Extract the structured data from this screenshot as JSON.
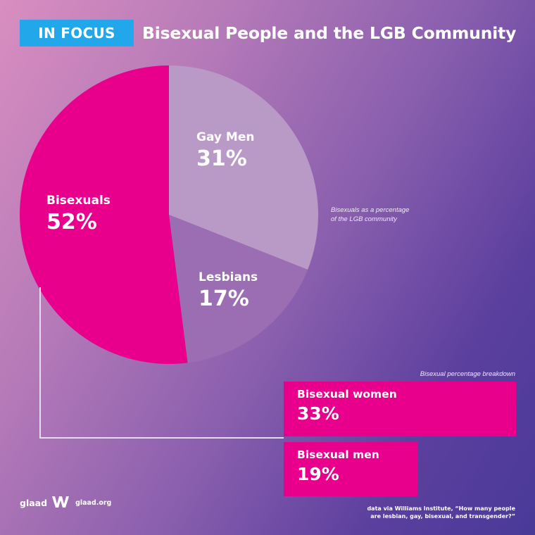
{
  "header": {
    "badge": "IN FOCUS",
    "title": "Bisexual People and the LGB Community"
  },
  "colors": {
    "accent_blue": "#22a7ea",
    "bisexual_pink": "#e8008c",
    "gay_men_lavender": "#b999c6",
    "lesbians_purple": "#9b6db2",
    "connector": "#e3dbee"
  },
  "captions": {
    "pie": "Bisexuals as a percentage of the LGB community",
    "pie_line1": "Bisexuals as a percentage",
    "pie_line2": "of the LGB community",
    "bars": "Bisexual percentage breakdown"
  },
  "chart_data": [
    {
      "type": "pie",
      "title": "",
      "slices": [
        {
          "label": "Gay Men",
          "value": 31,
          "display": "31%",
          "color": "#b999c6"
        },
        {
          "label": "Lesbians",
          "value": 17,
          "display": "17%",
          "color": "#9b6db2"
        },
        {
          "label": "Bisexuals",
          "value": 52,
          "display": "52%",
          "color": "#e8008c"
        }
      ]
    },
    {
      "type": "bar",
      "orientation": "horizontal",
      "title": "Bisexual percentage breakdown",
      "categories": [
        "Bisexual women",
        "Bisexual men"
      ],
      "values": [
        33,
        19
      ],
      "display": [
        "33%",
        "19%"
      ],
      "xlim": [
        0,
        33
      ]
    }
  ],
  "footer": {
    "logo_word": "glaad",
    "logo_icon": "glaad-logo-icon",
    "site": "glaad.org",
    "source_line1": "data via Williams Institute, “How many people",
    "source_line2": "are lesbian, gay, bisexual, and transgender?”"
  }
}
